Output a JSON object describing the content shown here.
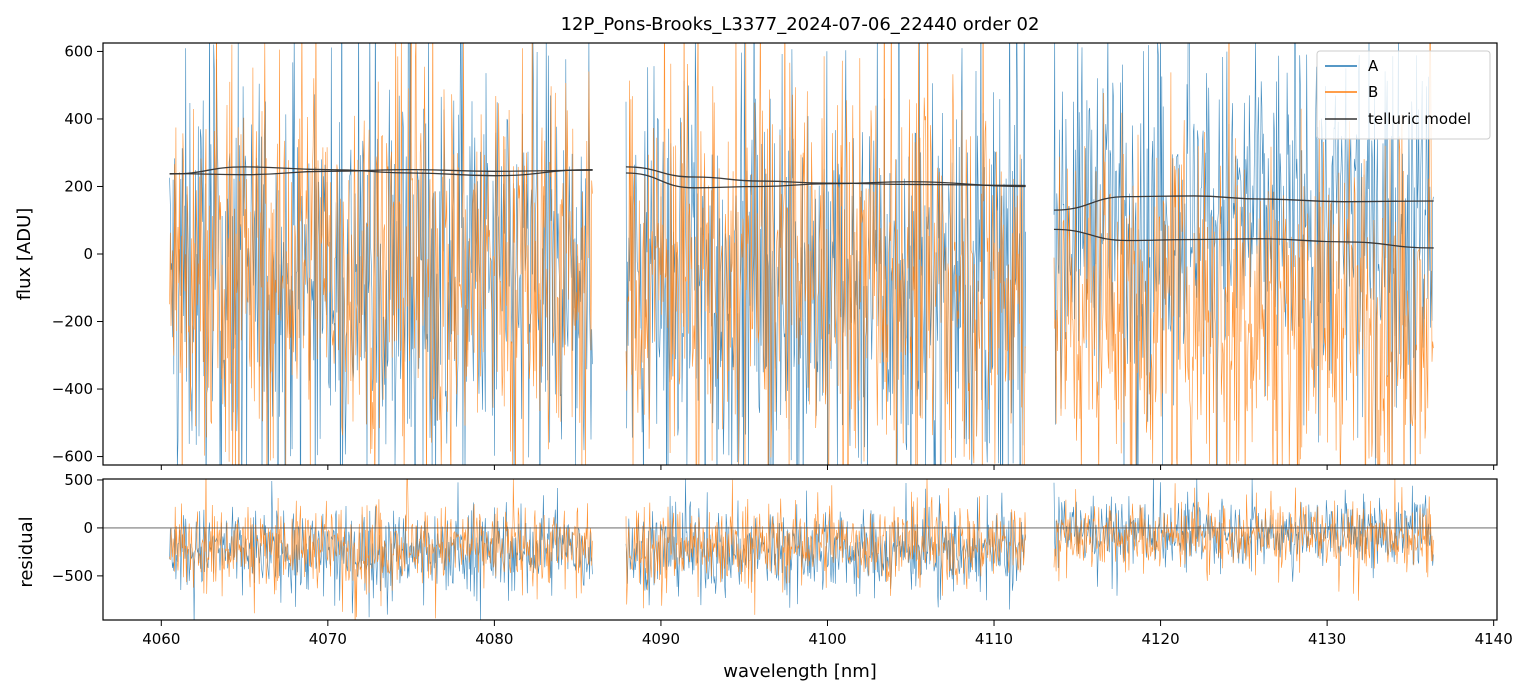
{
  "chart_data": [
    {
      "type": "line",
      "title": "12P_Pons-Brooks_L3377_2024-07-06_22440  order 02",
      "xlabel": "",
      "ylabel": "flux [ADU]",
      "xlim": [
        4056.5,
        4140.2
      ],
      "ylim": [
        -625,
        625
      ],
      "yticks": [
        -600,
        -400,
        -200,
        0,
        200,
        400,
        600
      ],
      "ytick_labels": [
        "−600",
        "−400",
        "−200",
        "0",
        "200",
        "400",
        "600"
      ],
      "legend_position": "top-right",
      "segments": [
        [
          4060.5,
          4085.9
        ],
        [
          4087.9,
          4111.9
        ],
        [
          4113.6,
          4136.4
        ]
      ],
      "series": [
        {
          "name": "A",
          "color": "#1f77b4",
          "style": "noisy-spectrum",
          "segment_levels": [
            {
              "mean": -80,
              "spread": 600
            },
            {
              "mean": -90,
              "spread": 600
            },
            {
              "mean": 120,
              "spread": 480
            }
          ]
        },
        {
          "name": "B",
          "color": "#ff7f0e",
          "style": "noisy-spectrum",
          "segment_levels": [
            {
              "mean": -40,
              "spread": 560
            },
            {
              "mean": -50,
              "spread": 560
            },
            {
              "mean": -160,
              "spread": 480
            }
          ]
        },
        {
          "name": "telluric model",
          "color": "#333333",
          "style": "smooth",
          "curves": [
            {
              "x": [
                4060.5,
                4065,
                4070,
                4075,
                4080,
                4085.9
              ],
              "y": [
                237,
                258,
                250,
                240,
                232,
                250
              ]
            },
            {
              "x": [
                4060.5,
                4065,
                4070,
                4075,
                4080,
                4085.9
              ],
              "y": [
                238,
                235,
                245,
                250,
                245,
                248
              ]
            },
            {
              "x": [
                4087.9,
                4092,
                4096,
                4100,
                4105,
                4111.9
              ],
              "y": [
                258,
                228,
                216,
                210,
                206,
                203
              ]
            },
            {
              "x": [
                4087.9,
                4092,
                4096,
                4100,
                4105,
                4111.9
              ],
              "y": [
                240,
                196,
                200,
                208,
                214,
                200
              ]
            },
            {
              "x": [
                4113.6,
                4118,
                4122,
                4126,
                4131,
                4136.4
              ],
              "y": [
                130,
                170,
                172,
                163,
                155,
                157
              ]
            },
            {
              "x": [
                4113.6,
                4118,
                4122,
                4126,
                4131,
                4136.4
              ],
              "y": [
                73,
                40,
                43,
                45,
                36,
                18
              ]
            }
          ]
        }
      ]
    },
    {
      "type": "line",
      "title": "",
      "xlabel": "wavelength [nm]",
      "ylabel": "residual",
      "xlim": [
        4056.5,
        4140.2
      ],
      "ylim": [
        -960,
        510
      ],
      "yticks": [
        -500,
        0,
        500
      ],
      "ytick_labels": [
        "−500",
        "0",
        "500"
      ],
      "xticks": [
        4060,
        4070,
        4080,
        4090,
        4100,
        4110,
        4120,
        4130,
        4140
      ],
      "xtick_labels": [
        "4060",
        "4070",
        "4080",
        "4090",
        "4100",
        "4110",
        "4120",
        "4130",
        "4140"
      ],
      "zero_line": 0,
      "series": [
        {
          "name": "A",
          "color": "#1f77b4",
          "segment_levels": [
            {
              "mean": -230,
              "spread": 420
            },
            {
              "mean": -240,
              "spread": 420
            },
            {
              "mean": -40,
              "spread": 330
            }
          ]
        },
        {
          "name": "B",
          "color": "#ff7f0e",
          "segment_levels": [
            {
              "mean": -180,
              "spread": 400
            },
            {
              "mean": -170,
              "spread": 400
            },
            {
              "mean": -90,
              "spread": 330
            }
          ]
        }
      ]
    }
  ]
}
